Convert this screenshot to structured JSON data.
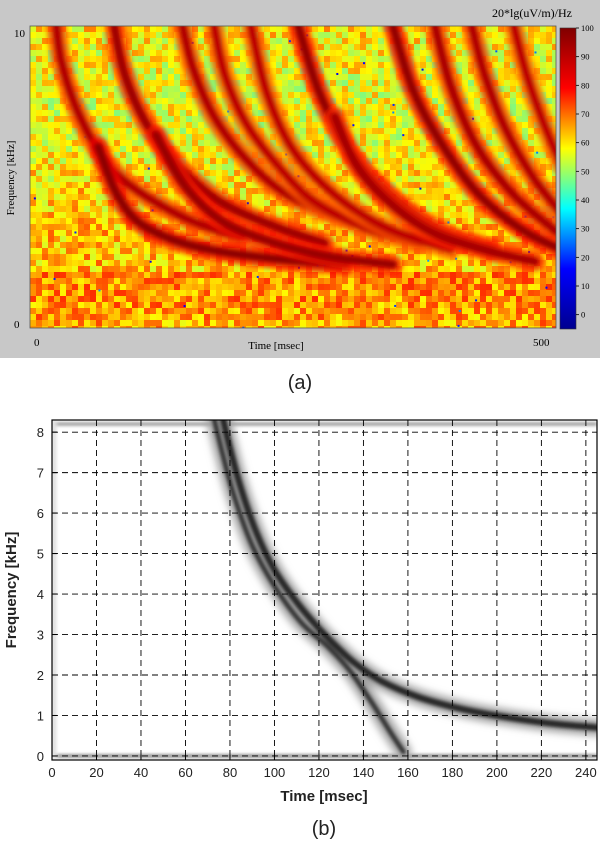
{
  "chart_data": [
    {
      "type": "heatmap",
      "panel_label": "(a)",
      "xlabel": "Time [msec]",
      "ylabel": "Frequency [kHz]",
      "xlim": [
        0,
        500
      ],
      "ylim": [
        0,
        10
      ],
      "x_ticks": [
        0,
        500
      ],
      "y_ticks": [
        0,
        10
      ],
      "colorbar": {
        "label": "20*lg(uV/m)/Hz",
        "range": [
          -5,
          100
        ],
        "ticks": [
          0,
          10,
          20,
          30,
          40,
          50,
          60,
          70,
          80,
          90,
          100
        ],
        "colormap": [
          "#00008f",
          "#0000ff",
          "#00ffff",
          "#ffff00",
          "#ff0000",
          "#800000"
        ]
      },
      "background_level": 60,
      "traces": [
        {
          "x": [
            25,
            30,
            45,
            70,
            100,
            150,
            200
          ],
          "y": [
            10,
            8.8,
            7.2,
            5.6,
            4.6,
            3.6,
            3.0
          ],
          "level": 92
        },
        {
          "x": [
            80,
            90,
            110,
            140,
            180,
            230,
            280
          ],
          "y": [
            10,
            8.4,
            6.8,
            5.4,
            4.2,
            3.4,
            2.8
          ],
          "level": 95
        },
        {
          "x": [
            65,
            80,
            100,
            130,
            170,
            230,
            300
          ],
          "y": [
            6.0,
            4.6,
            3.6,
            3.0,
            2.6,
            2.3,
            2.1
          ],
          "level": 98
        },
        {
          "x": [
            145,
            155,
            175,
            205,
            245,
            300
          ],
          "y": [
            10,
            8.6,
            7.0,
            5.6,
            4.4,
            3.6
          ],
          "level": 92
        },
        {
          "x": [
            120,
            145,
            180,
            225,
            280,
            345
          ],
          "y": [
            6.4,
            4.8,
            3.6,
            2.9,
            2.4,
            2.1
          ],
          "level": 96
        },
        {
          "x": [
            175,
            185,
            205,
            235,
            270,
            320,
            370
          ],
          "y": [
            10,
            8.4,
            6.8,
            5.4,
            4.2,
            3.3,
            2.8
          ],
          "level": 90
        },
        {
          "x": [
            210,
            225,
            250,
            290,
            340,
            400
          ],
          "y": [
            10,
            7.8,
            5.9,
            4.4,
            3.3,
            2.6
          ],
          "level": 90
        },
        {
          "x": [
            255,
            275,
            305,
            345,
            390,
            440
          ],
          "y": [
            10,
            7.8,
            5.8,
            4.3,
            3.2,
            2.6
          ],
          "level": 97
        },
        {
          "x": [
            290,
            310,
            340,
            380,
            430,
            480
          ],
          "y": [
            7.0,
            5.4,
            4.2,
            3.2,
            2.6,
            2.2
          ],
          "level": 94
        },
        {
          "x": [
            345,
            365,
            395,
            430,
            475,
            520
          ],
          "y": [
            10,
            7.8,
            5.9,
            4.3,
            3.1,
            2.4
          ],
          "level": 97
        },
        {
          "x": [
            385,
            400,
            425,
            460,
            500
          ],
          "y": [
            10,
            8.0,
            6.0,
            4.4,
            3.2
          ],
          "level": 93
        },
        {
          "x": [
            420,
            432,
            452,
            478,
            505
          ],
          "y": [
            10,
            8.4,
            6.6,
            5.0,
            3.8
          ],
          "level": 92
        },
        {
          "x": [
            460,
            472,
            488,
            505
          ],
          "y": [
            10,
            8.4,
            6.8,
            5.4
          ],
          "level": 90
        }
      ]
    },
    {
      "type": "heatmap",
      "panel_label": "(b)",
      "xlabel": "Time [msec]",
      "ylabel": "Frequency [kHz]",
      "xlim": [
        0,
        245
      ],
      "ylim": [
        -0.1,
        8.3
      ],
      "x_ticks": [
        0,
        20,
        40,
        60,
        80,
        100,
        120,
        140,
        160,
        180,
        200,
        220,
        240
      ],
      "y_ticks": [
        0,
        1,
        2,
        3,
        4,
        5,
        6,
        7,
        8
      ],
      "grid": true,
      "grid_style": "dashed",
      "traces": [
        {
          "x": [
            77,
            80,
            85,
            92,
            100,
            110,
            120,
            128,
            136,
            148,
            165,
            185,
            205,
            225,
            245
          ],
          "y": [
            8.3,
            7.6,
            6.6,
            5.5,
            4.6,
            3.8,
            3.15,
            2.7,
            2.3,
            1.85,
            1.45,
            1.15,
            0.95,
            0.8,
            0.7
          ],
          "intensity": 0.85,
          "width_khz_ms": 4
        },
        {
          "x": [
            73,
            77,
            82,
            90,
            100,
            112,
            124,
            134,
            144,
            152,
            158
          ],
          "y": [
            8.3,
            7.4,
            6.4,
            5.2,
            4.2,
            3.3,
            2.7,
            2.1,
            1.3,
            0.6,
            0.1
          ],
          "intensity": 0.8,
          "width_khz_ms": 3
        }
      ],
      "bands": [
        {
          "y": 0,
          "intensity": 0.55
        },
        {
          "y": 8.2,
          "intensity": 0.45
        }
      ]
    }
  ]
}
